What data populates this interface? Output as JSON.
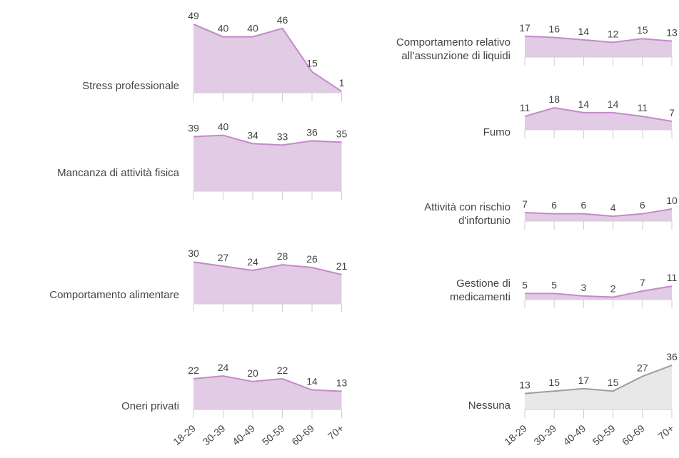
{
  "chart_data": {
    "type": "area",
    "categories": [
      "18-29",
      "30-39",
      "40-49",
      "50-59",
      "60-69",
      "70+"
    ],
    "colors": {
      "default_fill": "#e2cbe4",
      "default_line": "#c48ac9",
      "highlight_fill": "#e8e8e8",
      "highlight_line": "#9e9e9e"
    },
    "ylim": [
      0,
      50
    ],
    "panels": [
      {
        "name": "Stress professionale",
        "values": [
          49,
          40,
          40,
          46,
          15,
          1
        ],
        "style": "default"
      },
      {
        "name": "Mancanza di attività fisica",
        "values": [
          39,
          40,
          34,
          33,
          36,
          35
        ],
        "style": "default"
      },
      {
        "name": "Comportamento alimentare",
        "values": [
          30,
          27,
          24,
          28,
          26,
          21
        ],
        "style": "default"
      },
      {
        "name": "Oneri privati",
        "values": [
          22,
          24,
          20,
          22,
          14,
          13
        ],
        "style": "default"
      },
      {
        "name": "Comportamento relativo all’assunzione di liquidi",
        "values": [
          17,
          16,
          14,
          12,
          15,
          13
        ],
        "style": "default"
      },
      {
        "name": "Fumo",
        "values": [
          11,
          18,
          14,
          14,
          11,
          7
        ],
        "style": "default"
      },
      {
        "name": "Attività con rischio d'infortunio",
        "values": [
          7,
          6,
          6,
          4,
          6,
          10
        ],
        "style": "default"
      },
      {
        "name": "Gestione di medicamenti",
        "values": [
          5,
          5,
          3,
          2,
          7,
          11
        ],
        "style": "default"
      },
      {
        "name": "Nessuna",
        "values": [
          13,
          15,
          17,
          15,
          27,
          36
        ],
        "style": "highlight"
      }
    ]
  }
}
